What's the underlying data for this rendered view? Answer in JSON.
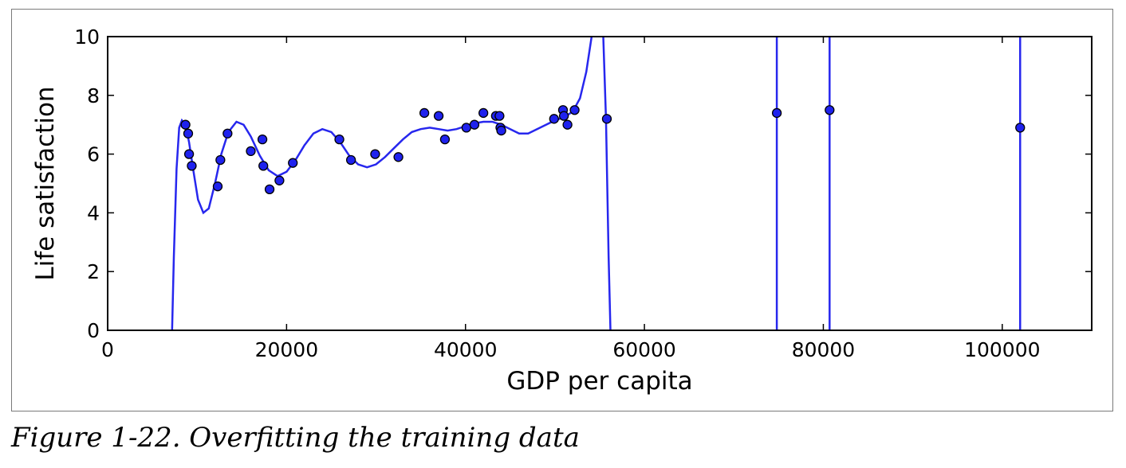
{
  "caption": "Figure 1-22. Overfitting the training data",
  "chart_data": {
    "type": "scatter",
    "xlabel": "GDP per capita",
    "ylabel": "Life satisfaction",
    "xlim": [
      0,
      110000
    ],
    "ylim": [
      0,
      10
    ],
    "xticks": [
      0,
      20000,
      40000,
      60000,
      80000,
      100000
    ],
    "xtick_labels": [
      "0",
      "20000",
      "40000",
      "60000",
      "80000",
      "100000"
    ],
    "yticks": [
      0,
      2,
      4,
      6,
      8,
      10
    ],
    "ytick_labels": [
      "0",
      "2",
      "4",
      "6",
      "8",
      "10"
    ],
    "grid": false,
    "colors": {
      "points": "#1f22ee",
      "curve": "#2727ee",
      "axes": "#000000"
    },
    "points": [
      {
        "x": 8700,
        "y": 7.0
      },
      {
        "x": 9000,
        "y": 6.7
      },
      {
        "x": 9100,
        "y": 6.0
      },
      {
        "x": 9400,
        "y": 5.6
      },
      {
        "x": 12300,
        "y": 4.9
      },
      {
        "x": 12600,
        "y": 5.8
      },
      {
        "x": 13400,
        "y": 6.7
      },
      {
        "x": 16000,
        "y": 6.1
      },
      {
        "x": 17300,
        "y": 6.5
      },
      {
        "x": 17400,
        "y": 5.6
      },
      {
        "x": 18100,
        "y": 4.8
      },
      {
        "x": 19200,
        "y": 5.1
      },
      {
        "x": 20700,
        "y": 5.7
      },
      {
        "x": 25900,
        "y": 6.5
      },
      {
        "x": 27200,
        "y": 5.8
      },
      {
        "x": 29900,
        "y": 6.0
      },
      {
        "x": 32500,
        "y": 5.9
      },
      {
        "x": 35400,
        "y": 7.4
      },
      {
        "x": 37000,
        "y": 7.3
      },
      {
        "x": 37700,
        "y": 6.5
      },
      {
        "x": 40100,
        "y": 6.9
      },
      {
        "x": 41000,
        "y": 7.0
      },
      {
        "x": 42000,
        "y": 7.4
      },
      {
        "x": 43400,
        "y": 7.3
      },
      {
        "x": 43800,
        "y": 7.3
      },
      {
        "x": 43900,
        "y": 6.9
      },
      {
        "x": 44000,
        "y": 6.8
      },
      {
        "x": 49900,
        "y": 7.2
      },
      {
        "x": 50900,
        "y": 7.5
      },
      {
        "x": 51000,
        "y": 7.3
      },
      {
        "x": 51400,
        "y": 7.0
      },
      {
        "x": 52200,
        "y": 7.5
      },
      {
        "x": 55800,
        "y": 7.2
      },
      {
        "x": 74800,
        "y": 7.4
      },
      {
        "x": 80700,
        "y": 7.5
      },
      {
        "x": 102000,
        "y": 6.9
      }
    ],
    "curve": [
      {
        "x": 7200,
        "y": 0
      },
      {
        "x": 7400,
        "y": 2.5
      },
      {
        "x": 7700,
        "y": 5.5
      },
      {
        "x": 8000,
        "y": 6.9
      },
      {
        "x": 8300,
        "y": 7.15
      },
      {
        "x": 8700,
        "y": 7.0
      },
      {
        "x": 9100,
        "y": 6.4
      },
      {
        "x": 9600,
        "y": 5.4
      },
      {
        "x": 10100,
        "y": 4.45
      },
      {
        "x": 10700,
        "y": 4.0
      },
      {
        "x": 11300,
        "y": 4.15
      },
      {
        "x": 12000,
        "y": 5.0
      },
      {
        "x": 12700,
        "y": 6.0
      },
      {
        "x": 13500,
        "y": 6.75
      },
      {
        "x": 14400,
        "y": 7.1
      },
      {
        "x": 15200,
        "y": 7.0
      },
      {
        "x": 16000,
        "y": 6.6
      },
      {
        "x": 17000,
        "y": 5.95
      },
      {
        "x": 18000,
        "y": 5.45
      },
      {
        "x": 19000,
        "y": 5.25
      },
      {
        "x": 20000,
        "y": 5.4
      },
      {
        "x": 21000,
        "y": 5.8
      },
      {
        "x": 22000,
        "y": 6.3
      },
      {
        "x": 23000,
        "y": 6.7
      },
      {
        "x": 24000,
        "y": 6.85
      },
      {
        "x": 25000,
        "y": 6.75
      },
      {
        "x": 26000,
        "y": 6.4
      },
      {
        "x": 27000,
        "y": 5.95
      },
      {
        "x": 28000,
        "y": 5.65
      },
      {
        "x": 29000,
        "y": 5.55
      },
      {
        "x": 30000,
        "y": 5.65
      },
      {
        "x": 31000,
        "y": 5.9
      },
      {
        "x": 32000,
        "y": 6.2
      },
      {
        "x": 33000,
        "y": 6.5
      },
      {
        "x": 34000,
        "y": 6.75
      },
      {
        "x": 35000,
        "y": 6.85
      },
      {
        "x": 36000,
        "y": 6.9
      },
      {
        "x": 37000,
        "y": 6.85
      },
      {
        "x": 38000,
        "y": 6.8
      },
      {
        "x": 39000,
        "y": 6.85
      },
      {
        "x": 40000,
        "y": 6.95
      },
      {
        "x": 41000,
        "y": 7.05
      },
      {
        "x": 42000,
        "y": 7.1
      },
      {
        "x": 43000,
        "y": 7.1
      },
      {
        "x": 44000,
        "y": 7.0
      },
      {
        "x": 45000,
        "y": 6.85
      },
      {
        "x": 46000,
        "y": 6.7
      },
      {
        "x": 47000,
        "y": 6.7
      },
      {
        "x": 48000,
        "y": 6.85
      },
      {
        "x": 49000,
        "y": 7.0
      },
      {
        "x": 50000,
        "y": 7.15
      },
      {
        "x": 51000,
        "y": 7.25
      },
      {
        "x": 52000,
        "y": 7.45
      },
      {
        "x": 52800,
        "y": 7.9
      },
      {
        "x": 53500,
        "y": 8.8
      },
      {
        "x": 54100,
        "y": 10.0
      },
      {
        "x": 54600,
        "y": 11.5
      },
      {
        "x": 55100,
        "y": 11.5
      },
      {
        "x": 55400,
        "y": 10.0
      },
      {
        "x": 55700,
        "y": 7.2
      },
      {
        "x": 56000,
        "y": 2.5
      },
      {
        "x": 56200,
        "y": 0
      }
    ],
    "vertical_segments": [
      74800,
      80700,
      102000
    ]
  }
}
